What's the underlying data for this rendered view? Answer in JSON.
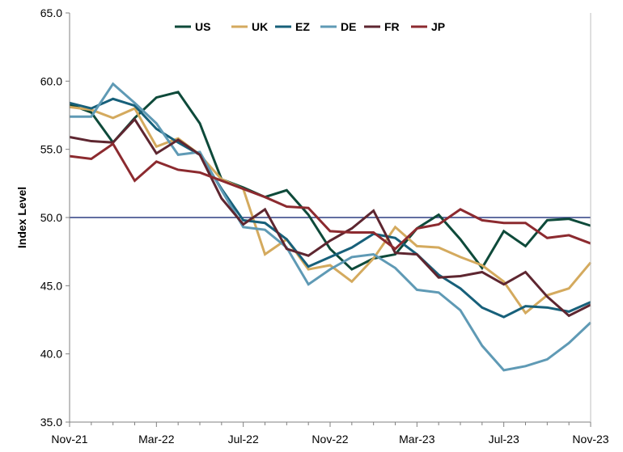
{
  "chart_data": {
    "type": "line",
    "title": "",
    "xlabel": "",
    "ylabel": "Index Level",
    "ylim": [
      35,
      65
    ],
    "y_ticks": [
      "35.0",
      "40.0",
      "45.0",
      "50.0",
      "55.0",
      "60.0",
      "65.0"
    ],
    "x_tick_labels": [
      "Nov-21",
      "Mar-22",
      "Jul-22",
      "Nov-22",
      "Mar-23",
      "Jul-23",
      "Nov-23"
    ],
    "x": [
      "Nov-21",
      "Dec-21",
      "Jan-22",
      "Feb-22",
      "Mar-22",
      "Apr-22",
      "May-22",
      "Jun-22",
      "Jul-22",
      "Aug-22",
      "Sep-22",
      "Oct-22",
      "Nov-22",
      "Dec-22",
      "Jan-23",
      "Feb-23",
      "Mar-23",
      "Apr-23",
      "May-23",
      "Jun-23",
      "Jul-23",
      "Aug-23",
      "Sep-23",
      "Oct-23",
      "Nov-23"
    ],
    "reference_line": 50,
    "grid": false,
    "legend_position": "top",
    "series": [
      {
        "name": "US",
        "color": "#0e4a3a",
        "values": [
          58.3,
          57.7,
          55.5,
          57.3,
          58.8,
          59.2,
          56.9,
          52.8,
          52.2,
          51.5,
          52.0,
          50.2,
          47.7,
          46.2,
          47.0,
          47.3,
          49.2,
          50.2,
          48.4,
          46.3,
          49.0,
          47.9,
          49.8,
          49.9,
          49.4
        ]
      },
      {
        "name": "UK",
        "color": "#d4aa5e",
        "values": [
          58.1,
          57.9,
          57.3,
          58.0,
          55.2,
          55.8,
          54.6,
          52.8,
          52.1,
          47.3,
          48.4,
          46.2,
          46.5,
          45.3,
          47.0,
          49.3,
          47.9,
          47.8,
          47.1,
          46.5,
          45.3,
          43.0,
          44.3,
          44.8,
          46.7
        ]
      },
      {
        "name": "EZ",
        "color": "#17607a",
        "values": [
          58.4,
          58.0,
          58.7,
          58.2,
          56.5,
          55.5,
          54.6,
          52.1,
          49.8,
          49.6,
          48.4,
          46.4,
          47.1,
          47.8,
          48.8,
          48.5,
          47.3,
          45.8,
          44.8,
          43.4,
          42.7,
          43.5,
          43.4,
          43.1,
          43.8
        ]
      },
      {
        "name": "DE",
        "color": "#5f9ab5",
        "values": [
          57.4,
          57.4,
          59.8,
          58.4,
          56.9,
          54.6,
          54.8,
          52.0,
          49.3,
          49.1,
          47.8,
          45.1,
          46.2,
          47.1,
          47.3,
          46.3,
          44.7,
          44.5,
          43.2,
          40.6,
          38.8,
          39.1,
          39.6,
          40.8,
          42.3
        ]
      },
      {
        "name": "FR",
        "color": "#5e2630",
        "values": [
          55.9,
          55.6,
          55.5,
          57.2,
          54.7,
          55.7,
          54.6,
          51.4,
          49.5,
          50.6,
          47.7,
          47.2,
          48.3,
          49.2,
          50.5,
          47.4,
          47.3,
          45.6,
          45.7,
          46.0,
          45.1,
          46.0,
          44.2,
          42.8,
          43.6
        ]
      },
      {
        "name": "JP",
        "color": "#8c2a2f",
        "values": [
          54.5,
          54.3,
          55.4,
          52.7,
          54.1,
          53.5,
          53.3,
          52.7,
          52.1,
          51.5,
          50.8,
          50.7,
          49.0,
          48.9,
          48.9,
          47.7,
          49.2,
          49.5,
          50.6,
          49.8,
          49.6,
          49.6,
          48.5,
          48.7,
          48.1
        ]
      }
    ]
  }
}
